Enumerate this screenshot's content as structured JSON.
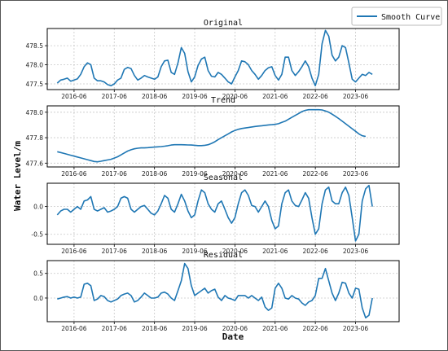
{
  "figure": {
    "xlabel": "Date",
    "ylabel": "Water Level/m",
    "legend": {
      "label": "Smooth Curve",
      "placement": "top-right"
    },
    "colors": {
      "line": "#1f77b4",
      "grid": "#c8c8c8",
      "frame": "#000000"
    }
  },
  "chart_data": [
    {
      "type": "line",
      "title": "Original",
      "x_start": "2016-01",
      "xticks": [
        "2016-06",
        "2017-06",
        "2018-06",
        "2019-06",
        "2020-06",
        "2021-06",
        "2022-06",
        "2023-06"
      ],
      "xlim": [
        "2015-10",
        "2024-07"
      ],
      "ylim": [
        477.35,
        478.95
      ],
      "yticks": [
        "477.5",
        "478.0",
        "478.5"
      ],
      "grid": true,
      "series": [
        {
          "values": [
            477.52,
            477.6,
            477.62,
            477.65,
            477.57,
            477.6,
            477.63,
            477.75,
            477.95,
            478.05,
            478.0,
            477.65,
            477.58,
            477.58,
            477.55,
            477.48,
            477.45,
            477.5,
            477.6,
            477.65,
            477.88,
            477.93,
            477.9,
            477.72,
            477.6,
            477.65,
            477.72,
            477.68,
            477.65,
            477.62,
            477.68,
            477.95,
            478.1,
            478.12,
            477.8,
            477.75,
            478.05,
            478.45,
            478.3,
            477.82,
            477.55,
            477.68,
            477.98,
            478.15,
            478.2,
            477.85,
            477.7,
            477.68,
            477.8,
            477.75,
            477.65,
            477.55,
            477.5,
            477.68,
            477.85,
            478.1,
            478.08,
            478.0,
            477.85,
            477.75,
            477.62,
            477.72,
            477.85,
            477.92,
            477.95,
            477.72,
            477.6,
            477.75,
            478.2,
            478.2,
            477.85,
            477.72,
            477.82,
            477.95,
            478.1,
            477.95,
            477.65,
            477.45,
            477.75,
            478.55,
            478.9,
            478.75,
            478.25,
            478.1,
            478.2,
            478.5,
            478.45,
            478.05,
            477.62,
            477.55,
            477.65,
            477.75,
            477.72,
            477.8,
            477.75
          ]
        }
      ]
    },
    {
      "type": "line",
      "title": "Trend",
      "x_start": "2016-01",
      "xticks": [
        "2016-06",
        "2017-06",
        "2018-06",
        "2019-06",
        "2020-06",
        "2021-06",
        "2022-06",
        "2023-06"
      ],
      "xlim": [
        "2015-10",
        "2024-07"
      ],
      "ylim": [
        477.57,
        478.05
      ],
      "yticks": [
        "477.6",
        "477.8",
        "478.0"
      ],
      "grid": true,
      "series": [
        {
          "values": [
            477.69,
            477.683,
            477.676,
            477.669,
            477.662,
            477.655,
            477.648,
            477.641,
            477.634,
            477.627,
            477.62,
            477.613,
            477.61,
            477.615,
            477.62,
            477.625,
            477.63,
            477.64,
            477.65,
            477.665,
            477.68,
            477.695,
            477.705,
            477.713,
            477.717,
            477.72,
            477.72,
            477.722,
            477.724,
            477.726,
            477.728,
            477.73,
            477.733,
            477.737,
            477.742,
            477.745,
            477.745,
            477.745,
            477.744,
            477.743,
            477.742,
            477.74,
            477.738,
            477.738,
            477.74,
            477.745,
            477.755,
            477.768,
            477.785,
            477.8,
            477.815,
            477.83,
            477.845,
            477.857,
            477.866,
            477.872,
            477.876,
            477.88,
            477.884,
            477.888,
            477.891,
            477.894,
            477.897,
            477.9,
            477.902,
            477.905,
            477.91,
            477.92,
            477.93,
            477.945,
            477.96,
            477.975,
            477.99,
            478.005,
            478.015,
            478.02,
            478.02,
            478.02,
            478.02,
            478.018,
            478.01,
            478.0,
            477.985,
            477.968,
            477.95,
            477.93,
            477.91,
            477.89,
            477.87,
            477.85,
            477.83,
            477.815,
            477.81
          ]
        }
      ]
    },
    {
      "type": "line",
      "title": "Seasonal",
      "x_start": "2016-01",
      "xticks": [
        "2016-06",
        "2017-06",
        "2018-06",
        "2019-06",
        "2020-06",
        "2021-06",
        "2022-06",
        "2023-06"
      ],
      "xlim": [
        "2015-10",
        "2024-07"
      ],
      "ylim": [
        -0.68,
        0.42
      ],
      "yticks": [
        "0.0",
        "-0.5"
      ],
      "grid": true,
      "series": [
        {
          "values": [
            -0.15,
            -0.08,
            -0.05,
            -0.05,
            -0.1,
            -0.05,
            0.0,
            -0.05,
            0.1,
            0.12,
            0.18,
            -0.05,
            -0.08,
            -0.05,
            -0.02,
            -0.1,
            -0.08,
            -0.05,
            0.0,
            0.15,
            0.18,
            0.15,
            -0.05,
            -0.1,
            -0.05,
            0.0,
            0.02,
            -0.05,
            -0.12,
            -0.15,
            -0.08,
            0.05,
            0.2,
            0.15,
            -0.05,
            -0.1,
            0.05,
            0.22,
            0.1,
            -0.08,
            -0.2,
            -0.15,
            0.1,
            0.3,
            0.25,
            0.05,
            -0.05,
            -0.1,
            0.05,
            0.1,
            -0.05,
            -0.2,
            -0.3,
            -0.2,
            0.05,
            0.25,
            0.3,
            0.2,
            0.02,
            0.0,
            -0.1,
            0.0,
            0.1,
            0.0,
            -0.25,
            -0.4,
            -0.35,
            0.05,
            0.25,
            0.3,
            0.1,
            0.02,
            0.0,
            0.12,
            0.25,
            0.15,
            -0.2,
            -0.5,
            -0.4,
            0.05,
            0.3,
            0.35,
            0.1,
            0.05,
            0.05,
            0.25,
            0.35,
            0.2,
            -0.2,
            -0.62,
            -0.5,
            0.1,
            0.32,
            0.38,
            0.0
          ]
        }
      ]
    },
    {
      "type": "line",
      "title": "Residual",
      "x_start": "2016-01",
      "xticks": [
        "2016-06",
        "2017-06",
        "2018-06",
        "2019-06",
        "2020-06",
        "2021-06",
        "2022-06",
        "2023-06"
      ],
      "xlim": [
        "2015-10",
        "2024-07"
      ],
      "ylim": [
        -0.48,
        0.76
      ],
      "yticks": [
        "0.5",
        "0.0"
      ],
      "grid": true,
      "series": [
        {
          "values": [
            -0.02,
            0.0,
            0.02,
            0.03,
            0.0,
            0.02,
            0.0,
            0.02,
            0.28,
            0.3,
            0.25,
            -0.05,
            -0.02,
            0.05,
            0.03,
            -0.05,
            -0.08,
            -0.05,
            -0.02,
            0.05,
            0.08,
            0.1,
            0.05,
            -0.08,
            -0.05,
            0.02,
            0.1,
            0.05,
            0.0,
            0.0,
            0.02,
            0.1,
            0.12,
            0.08,
            0.0,
            -0.05,
            0.15,
            0.35,
            0.7,
            0.6,
            0.25,
            0.05,
            0.1,
            0.15,
            0.2,
            0.1,
            0.15,
            0.18,
            0.02,
            -0.05,
            0.05,
            0.0,
            -0.02,
            -0.05,
            0.05,
            0.05,
            0.05,
            0.0,
            0.05,
            0.0,
            -0.05,
            0.02,
            -0.18,
            -0.25,
            -0.2,
            0.2,
            0.3,
            0.2,
            0.0,
            -0.02,
            0.05,
            0.0,
            -0.02,
            -0.1,
            -0.15,
            -0.08,
            -0.05,
            0.05,
            0.4,
            0.4,
            0.6,
            0.35,
            0.1,
            -0.05,
            0.1,
            0.32,
            0.3,
            0.1,
            0.0,
            0.2,
            0.18,
            -0.2,
            -0.4,
            -0.35,
            0.0
          ]
        }
      ]
    }
  ]
}
